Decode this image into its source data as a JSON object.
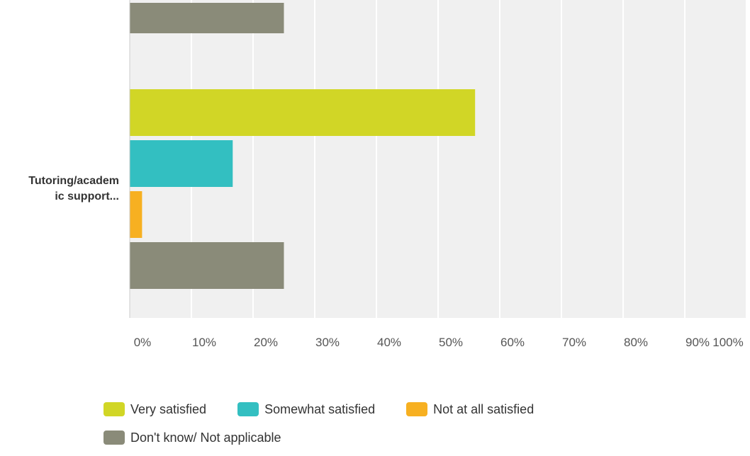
{
  "chart_data": {
    "type": "bar",
    "orientation": "horizontal",
    "x_ticks": [
      "0%",
      "10%",
      "20%",
      "30%",
      "40%",
      "50%",
      "60%",
      "70%",
      "80%",
      "90%",
      "100%"
    ],
    "xlim": [
      0,
      100
    ],
    "categories": [
      "Tutoring/academ\nic support..."
    ],
    "series": [
      {
        "name": "Very satisfied",
        "color": "#d1d626",
        "values": [
          56
        ]
      },
      {
        "name": "Somewhat satisfied",
        "color": "#33bfc1",
        "values": [
          16.7
        ]
      },
      {
        "name": "Not at all satisfied",
        "color": "#f7b021",
        "values": [
          2
        ]
      },
      {
        "name": "Don't know/ Not applicable",
        "color": "#8a8b79",
        "values": [
          25
        ]
      }
    ],
    "previous_category_partial": {
      "series": "Don't know/ Not applicable",
      "value": 25
    },
    "grid": true,
    "legend_position": "bottom"
  }
}
